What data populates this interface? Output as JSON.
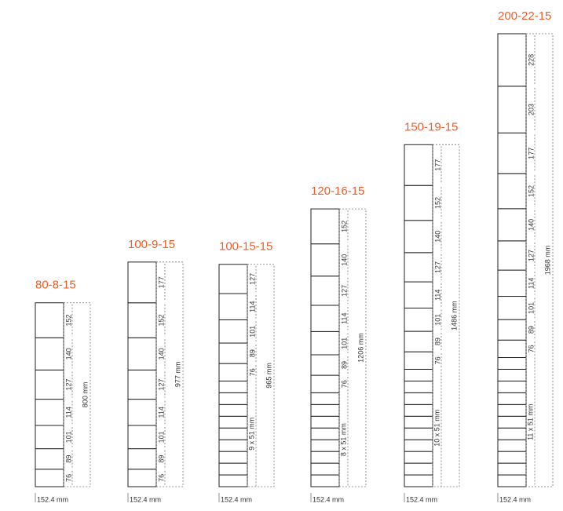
{
  "columns": [
    {
      "title": "80-8-15",
      "width_label": "152.4 mm",
      "total_label": "800 mm",
      "segments": [
        152,
        140,
        127,
        114,
        101,
        89,
        76
      ]
    },
    {
      "title": "100-9-15",
      "width_label": "152.4 mm",
      "total_label": "977 mm",
      "segments": [
        177,
        152,
        140,
        127,
        114,
        101,
        89,
        76
      ]
    },
    {
      "title": "100-15-15",
      "width_label": "152.4 mm",
      "total_label": "965 mm",
      "segments": [
        127,
        114,
        101,
        89,
        76
      ],
      "small": {
        "label": "9 x 51 mm",
        "count": 9,
        "size": 51
      }
    },
    {
      "title": "120-16-15",
      "width_label": "152.4 mm",
      "total_label": "1206 mm",
      "segments": [
        152,
        140,
        127,
        114,
        101,
        89,
        76
      ],
      "small": {
        "label": "8 x 51 mm",
        "count": 8,
        "size": 51
      }
    },
    {
      "title": "150-19-15",
      "width_label": "152.4 mm",
      "total_label": "1486 mm",
      "segments": [
        177,
        152,
        140,
        127,
        114,
        101,
        89,
        76
      ],
      "small": {
        "label": "10 x 51 mm",
        "count": 10,
        "size": 51
      }
    },
    {
      "title": "200-22-15",
      "width_label": "152.4 mm",
      "total_label": "1968 mm",
      "segments": [
        228,
        203,
        177,
        152,
        140,
        127,
        114,
        101,
        89,
        76
      ],
      "small": {
        "label": "11 x 51 mm",
        "count": 11,
        "size": 51
      }
    }
  ]
}
